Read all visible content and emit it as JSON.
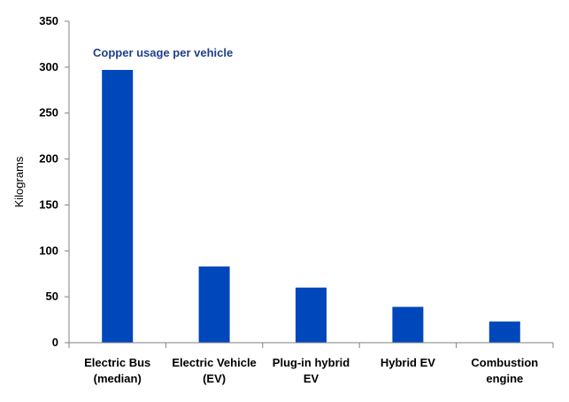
{
  "chart_data": {
    "type": "bar",
    "title": "Copper usage per vehicle",
    "ylabel": "Kilograms",
    "xlabel": "",
    "categories": [
      [
        "Electric Bus",
        "(median)"
      ],
      [
        "Electric Vehicle",
        "(EV)"
      ],
      [
        "Plug-in hybrid",
        "EV"
      ],
      [
        "Hybrid EV"
      ],
      [
        "Combustion",
        "engine"
      ]
    ],
    "values": [
      297,
      83,
      60,
      39,
      23
    ],
    "ylim": [
      0,
      350
    ],
    "yticks": [
      0,
      50,
      100,
      150,
      200,
      250,
      300,
      350
    ],
    "grid": false,
    "legend": "none",
    "colors": {
      "bar": "#0047BB",
      "title": "#1F3E8C",
      "axis": "#808080"
    }
  }
}
